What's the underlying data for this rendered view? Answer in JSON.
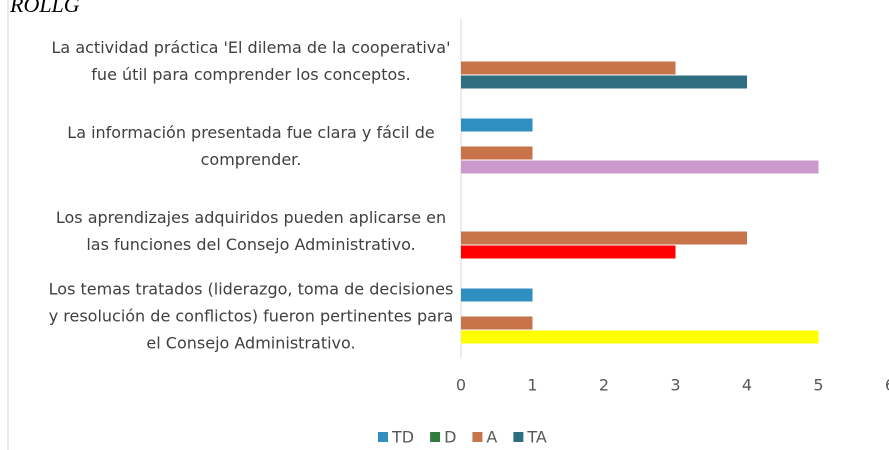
{
  "chart_data": {
    "type": "barh",
    "title": "ROLLG",
    "categories": [
      "La actividad práctica 'El dilema de la cooperativa' fue útil para comprender los conceptos.",
      "La información presentada fue clara y fácil de comprender.",
      "Los aprendizajes adquiridos pueden aplicarse en las funciones del Consejo Administrativo.",
      "Los temas tratados (liderazgo, toma de decisiones y resolución de conflictos) fueron pertinentes para el Consejo Administrativo."
    ],
    "series": [
      {
        "name": "TD",
        "color": "#2e8fc0",
        "values": [
          null,
          1,
          null,
          1
        ]
      },
      {
        "name": "D",
        "color": "#2e7d3f",
        "values": [
          null,
          null,
          null,
          null
        ]
      },
      {
        "name": "A",
        "color": "#c8734a",
        "values": [
          3,
          1,
          4,
          1
        ]
      },
      {
        "name": "TA",
        "color": "#2e6e80",
        "colors": [
          "#2e6e80",
          "#cc99cc",
          "#ff0000",
          "#ffff00"
        ],
        "values": [
          4,
          5,
          3,
          5
        ]
      }
    ],
    "xlim": [
      0,
      6
    ],
    "xticks": [
      0,
      1,
      2,
      3,
      4,
      5,
      6
    ],
    "legend": "bottom"
  }
}
